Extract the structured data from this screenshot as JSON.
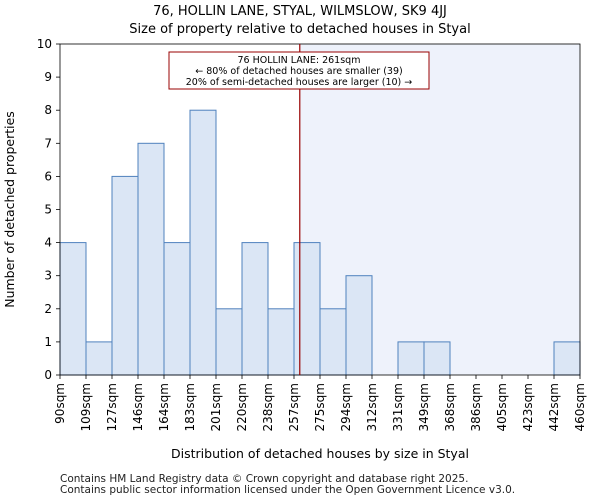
{
  "title_line1": "76, HOLLIN LANE, STYAL, WILMSLOW, SK9 4JJ",
  "title_line2": "Size of property relative to detached houses in Styal",
  "footer_line1": "Contains HM Land Registry data © Crown copyright and database right 2025.",
  "footer_line2": "Contains public sector information licensed under the Open Government Licence v3.0.",
  "chart_data": {
    "type": "bar",
    "xlabel": "Distribution of detached houses by size in Styal",
    "ylabel": "Number of detached properties",
    "ylim": [
      0,
      10
    ],
    "yticks": [
      0,
      1,
      2,
      3,
      4,
      5,
      6,
      7,
      8,
      9,
      10
    ],
    "bin_edges": [
      "90sqm",
      "109sqm",
      "127sqm",
      "146sqm",
      "164sqm",
      "183sqm",
      "201sqm",
      "220sqm",
      "238sqm",
      "257sqm",
      "275sqm",
      "294sqm",
      "312sqm",
      "331sqm",
      "349sqm",
      "368sqm",
      "386sqm",
      "405sqm",
      "423sqm",
      "442sqm",
      "460sqm"
    ],
    "values": [
      4,
      1,
      6,
      7,
      4,
      8,
      2,
      4,
      2,
      4,
      2,
      3,
      0,
      1,
      1,
      0,
      0,
      0,
      0,
      1
    ],
    "marker_value_sqm": 261,
    "annotation": {
      "line1": "76 HOLLIN LANE: 261sqm",
      "line2": "← 80% of detached houses are smaller (39)",
      "line3": "20% of semi-detached houses are larger (10) →"
    },
    "colors": {
      "bar_fill": "#dbe6f5",
      "bar_stroke": "#4f81bd",
      "marker": "#990000",
      "shade": "#eef2fb"
    }
  }
}
